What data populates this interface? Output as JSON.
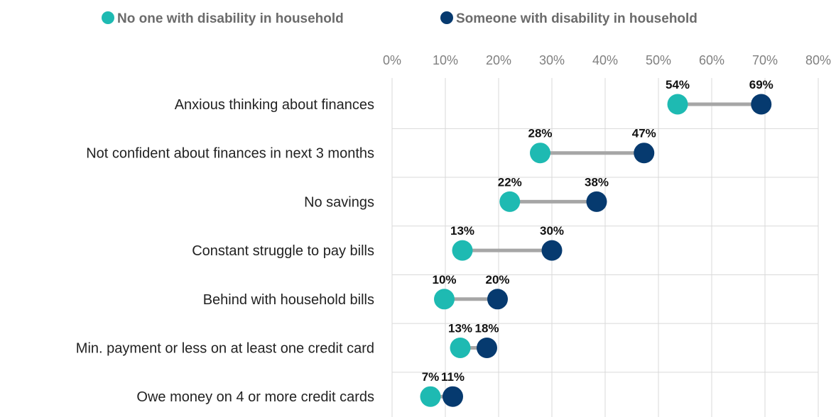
{
  "chart_data": {
    "type": "dumbbell",
    "title": "",
    "xlabel": "",
    "ylabel": "",
    "xlim": [
      0,
      80
    ],
    "x_ticks": [
      "0%",
      "10%",
      "20%",
      "30%",
      "40%",
      "50%",
      "60%",
      "70%",
      "80%"
    ],
    "x_tick_values": [
      0,
      10,
      20,
      30,
      40,
      50,
      60,
      70,
      80
    ],
    "grid": true,
    "legend_position": "top",
    "categories": [
      "Anxious thinking about finances",
      "Not confident about finances in next 3 months",
      "No savings",
      "Constant struggle to pay bills",
      "Behind with household bills",
      "Min. payment or less on at least one credit card",
      "Owe money on 4 or more credit cards"
    ],
    "series": [
      {
        "name": "No one with disability in household",
        "color": "#1ebab2",
        "values": [
          53.6,
          27.8,
          22.1,
          13.2,
          9.8,
          12.8,
          7.2
        ],
        "labels": [
          "54%",
          "28%",
          "22%",
          "13%",
          "10%",
          "13%",
          "7%"
        ]
      },
      {
        "name": "Someone with disability in household",
        "color": "#063a6f",
        "values": [
          69.3,
          47.3,
          38.4,
          30.0,
          19.8,
          17.8,
          11.4
        ],
        "labels": [
          "69%",
          "47%",
          "38%",
          "30%",
          "20%",
          "18%",
          "11%"
        ]
      }
    ],
    "connector_color": "#a6a6a6"
  }
}
